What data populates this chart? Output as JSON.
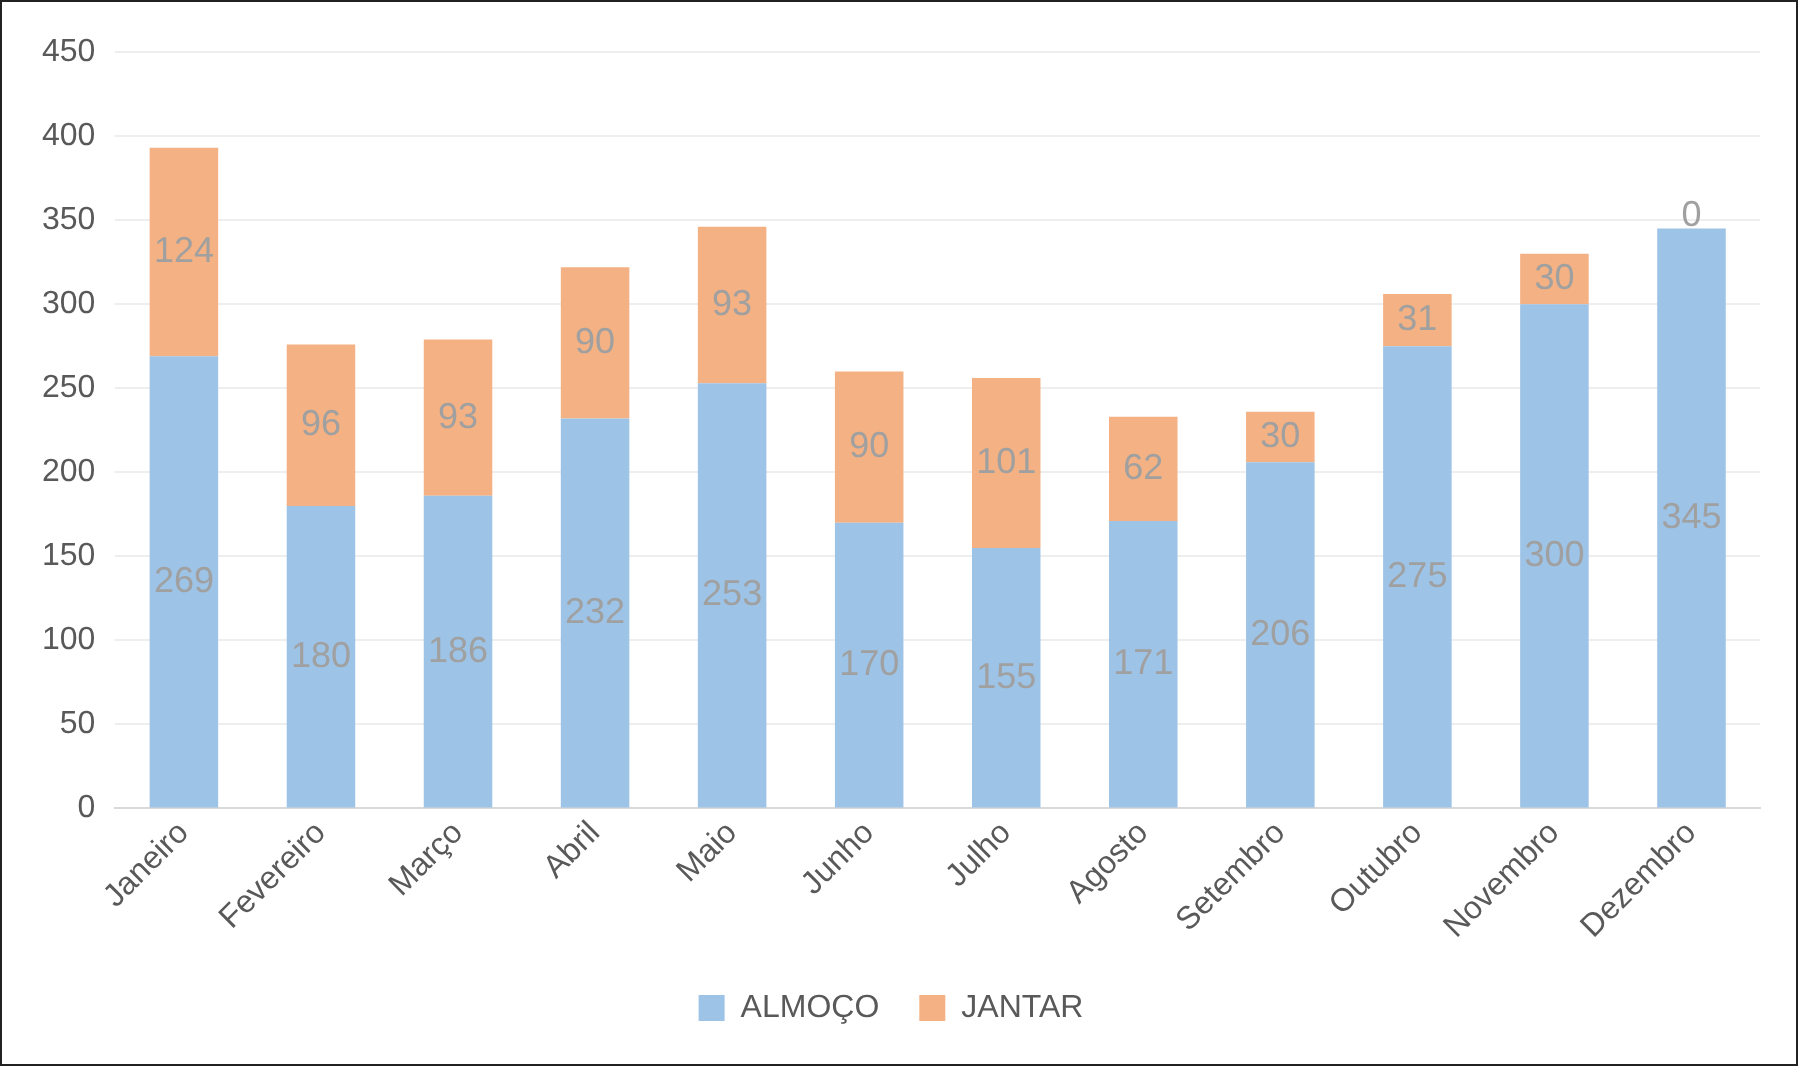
{
  "chart_data": {
    "type": "bar",
    "stacked": true,
    "categories": [
      "Janeiro",
      "Fevereiro",
      "Março",
      "Abril",
      "Maio",
      "Junho",
      "Julho",
      "Agosto",
      "Setembro",
      "Outubro",
      "Novembro",
      "Dezembro"
    ],
    "series": [
      {
        "name": "ALMOÇO",
        "color": "#9dc3e6",
        "values": [
          269,
          180,
          186,
          232,
          253,
          170,
          155,
          171,
          206,
          275,
          300,
          345
        ]
      },
      {
        "name": "JANTAR",
        "color": "#f4b183",
        "values": [
          124,
          96,
          93,
          90,
          93,
          90,
          101,
          62,
          30,
          31,
          30,
          0
        ]
      }
    ],
    "ylim": [
      0,
      450
    ],
    "yticks": [
      0,
      50,
      100,
      150,
      200,
      250,
      300,
      350,
      400,
      450
    ],
    "grid": "y",
    "legend": "bottom",
    "data_labels": true
  }
}
